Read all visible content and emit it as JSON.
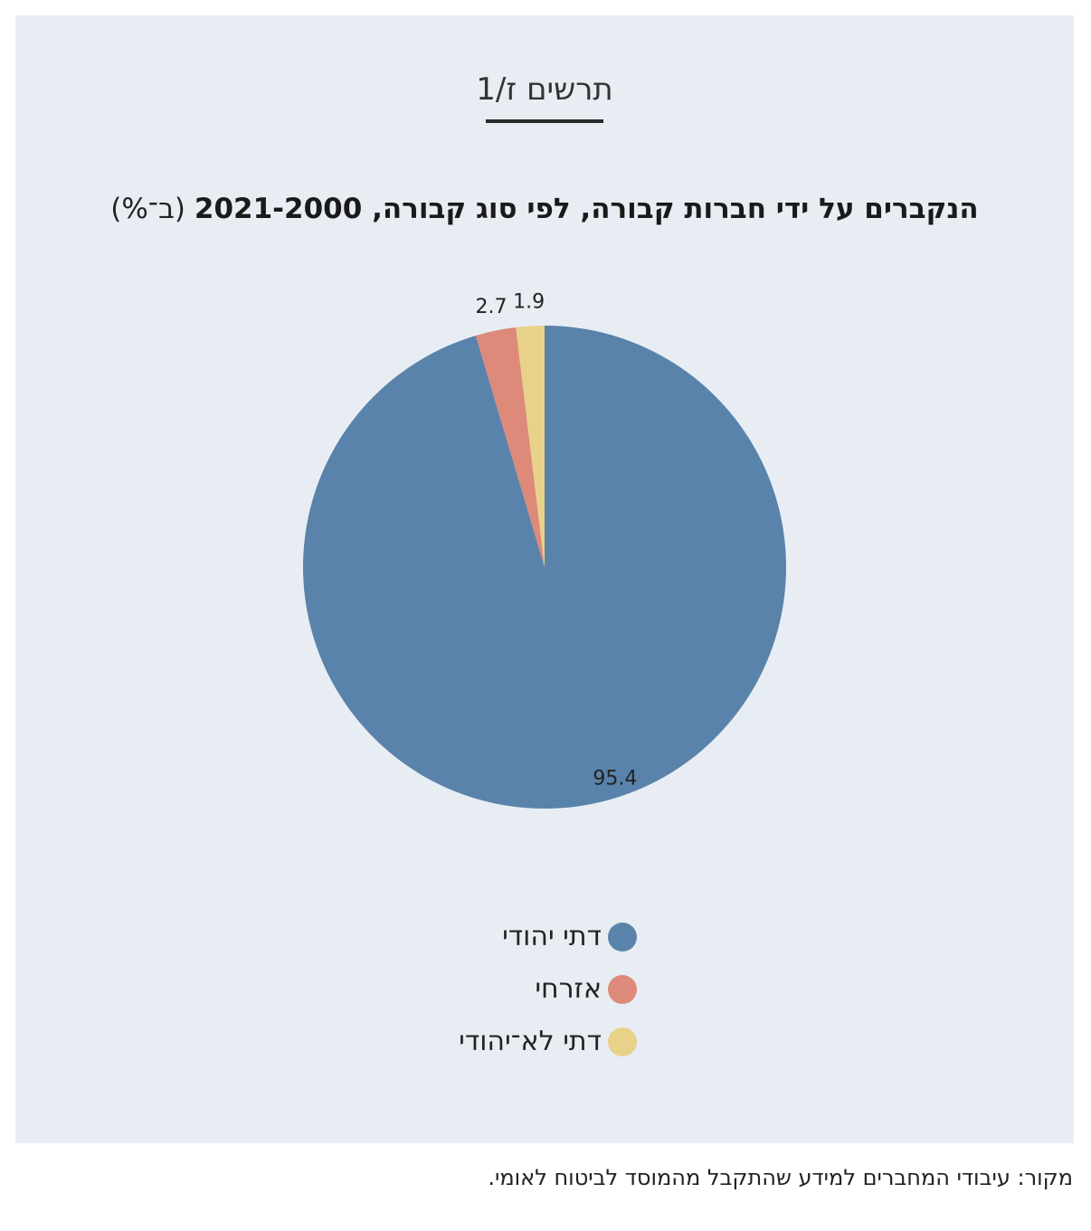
{
  "figure_label": "תרשים ז/1",
  "source_note": "מקור: עיבודי המחברים למידע שהתקבל מהמוסד לביטוח לאומי.",
  "chart_data": {
    "type": "pie",
    "title": "הנקברים על ידי חברות קבורה, לפי סוג קבורה, 2021-2000",
    "unit": "(ב־%)",
    "categories": [
      "דתי יהודי",
      "אזרחי",
      "דתי לא־יהודי"
    ],
    "values": [
      95.4,
      2.7,
      1.9
    ],
    "value_labels": [
      "95.4",
      "2.7",
      "1.9"
    ],
    "colors": [
      "#5983aa",
      "#dd8a7a",
      "#e8d28a"
    ],
    "legend_position": "bottom"
  }
}
